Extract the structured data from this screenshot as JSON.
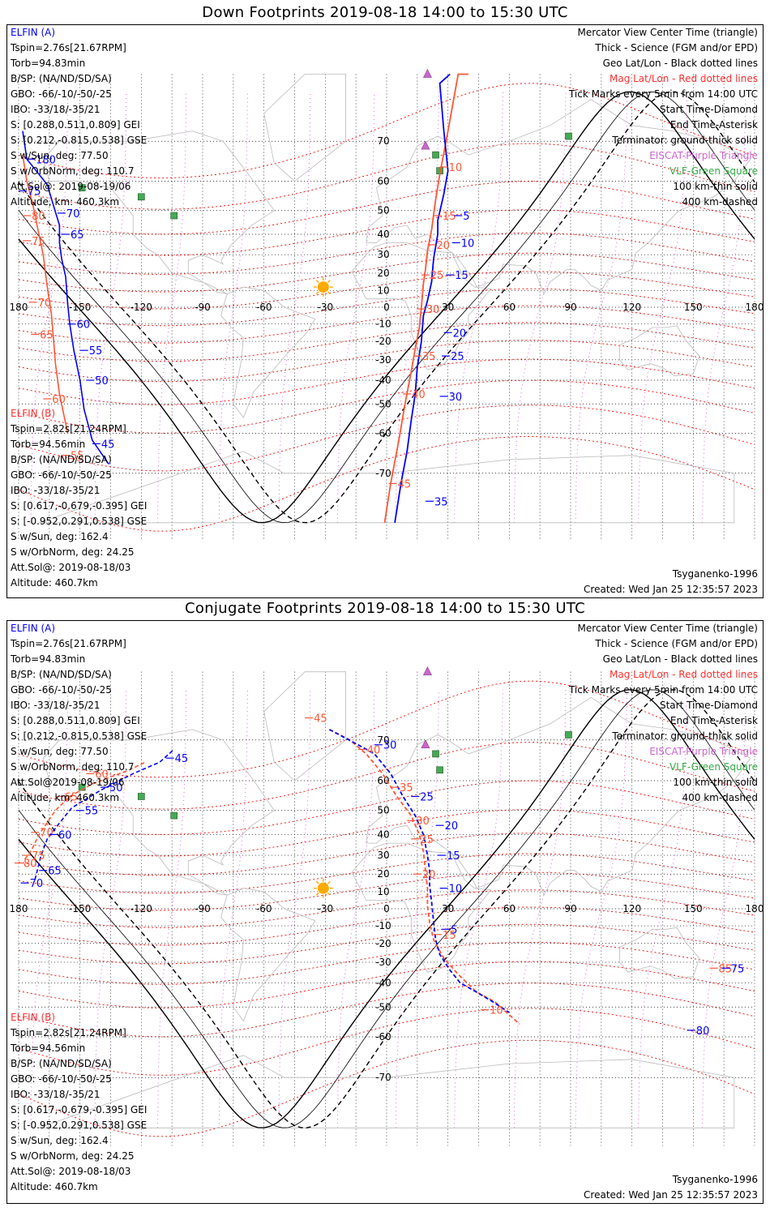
{
  "panels": [
    {
      "title": "Down Footprints 2019-08-18 14:00 to 15:30 UTC",
      "elfin_a": {
        "header": "ELFIN (A)",
        "lines": [
          "Tspin=2.76s[21.67RPM]",
          "Torb=94.83min",
          "B/SP: (NA/ND/SD/SA)",
          "GBO: -66/-10/-50/-25",
          "IBO: -33/18/-35/21",
          "S: [0.288,0.511,0.809] GEI",
          "S: [0.212,-0.815,0.538] GSE",
          "S w/Sun, deg: 77.50",
          "S w/OrbNorm, deg: 110.7",
          "Att.Sol@: 2019-08-19/06",
          "Altitude, km: 460.3km"
        ]
      },
      "elfin_b": {
        "header": "ELFIN (B)",
        "lines": [
          "Tspin=2.82s[21.24RPM]",
          "Torb=94.56min",
          "B/SP: (NA/ND/SD/SA)",
          "GBO: -66/-10/-50/-25",
          "IBO: -33/18/-35/21",
          "S: [0.617,-0.679,-0.395] GEI",
          "S: [-0.952,0.291,0.538] GSE",
          "S w/Sun, deg: 162.4",
          "S w/OrbNorm, deg: 24.25",
          "Att.Sol@: 2019-08-18/03",
          "Altitude: 460.7km"
        ]
      },
      "model": "Tsyganenko-1996",
      "created": "Created: Wed Jan 25 12:35:57 2023"
    },
    {
      "title": "Conjugate Footprints 2019-08-18 14:00 to 15:30 UTC",
      "elfin_a": {
        "header": "ELFIN (A)",
        "lines": [
          "Tspin=2.76s[21.67RPM]",
          "Torb=94.83min",
          "B/SP: (NA/ND/SD/SA)",
          "GBO: -66/-10/-50/-25",
          "IBO: -33/18/-35/21",
          "S: [0.288,0.511,0.809] GEI",
          "S: [0.212,-0.815,0.538] GSE",
          "S w/Sun, deg: 77.50",
          "S w/OrbNorm, deg: 110.7",
          "Att.Sol@2019-08-19/06",
          "Altitude, km: 460.3km"
        ]
      },
      "elfin_b": {
        "header": "ELFIN (B)",
        "lines": [
          "Tspin=2.82s[21.24RPM]",
          "Torb=94.56min",
          "B/SP: (NA/ND/SD/SA)",
          "GBO: -66/-10/-50/-25",
          "IBO: -33/18/-35/21",
          "S: [0.617,-0.679,-0.395] GEI",
          "S: [-0.952,0.291,0.538] GSE",
          "S w/Sun, deg: 162.4",
          "S w/OrbNorm, deg: 24.25",
          "Att.Sol@: 2019-08-18/03",
          "Altitude: 460.7km"
        ]
      },
      "model": "Tsyganenko-1996",
      "created": "Created: Wed Jan 25 12:35:57 2023"
    }
  ],
  "legend": [
    {
      "text": "Mercator View Center Time (triangle)",
      "color": "#000000"
    },
    {
      "text": "Thick - Science (FGM and/or EPD)",
      "color": "#000000"
    },
    {
      "text": "Geo Lat/Lon - Black dotted lines",
      "color": "#000000"
    },
    {
      "text": "Mag Lat/Lon - Red dotted lines",
      "color": "#ff3030"
    },
    {
      "text": "Tick Marks every 5min from 14:00 UTC",
      "color": "#000000"
    },
    {
      "text": "Start Time-Diamond",
      "color": "#000000"
    },
    {
      "text": "End Time-Asterisk",
      "color": "#000000"
    },
    {
      "text": "Terminator: ground-thick solid",
      "color": "#000000"
    },
    {
      "text": "EISCAT-Purple Triangle",
      "color": "#cc66cc"
    },
    {
      "text": "VLF-Green Square",
      "color": "#33aa44"
    },
    {
      "text": "100 km-thin solid",
      "color": "#000000"
    },
    {
      "text": "400 km-dashed",
      "color": "#000000"
    }
  ],
  "axes": {
    "lon_ticks": [
      "180",
      "-150",
      "-120",
      "-90",
      "-60",
      "-30",
      "0",
      "30",
      "60",
      "90",
      "120",
      "150",
      "180"
    ],
    "lat_ticks": [
      "70",
      "60",
      "50",
      "40",
      "30",
      "20",
      "10",
      "0",
      "-10",
      "-20",
      "-30",
      "-40",
      "-50",
      "-60",
      "-70"
    ]
  },
  "colors": {
    "elfin_a": "#0000ff",
    "elfin_b": "#ff5533",
    "mag_grid": "#ff0000",
    "geo_grid": "#000000",
    "mlon": "#dd55dd",
    "sun": "#ffaa00",
    "vlf": "#44aa55",
    "eiscat": "#cc66cc"
  },
  "markers": {
    "vlf": [
      [
        -149,
        58
      ],
      [
        -120,
        55
      ],
      [
        -104,
        48
      ],
      [
        24,
        67
      ],
      [
        26,
        63
      ],
      [
        89,
        71
      ]
    ],
    "eiscat": [
      [
        20,
        80
      ],
      [
        19,
        69
      ]
    ],
    "sun": [
      -31,
      12
    ]
  },
  "tracks": [
    {
      "a": [
        [
          -178,
          72
        ],
        [
          -176,
          66
        ],
        [
          -170,
          62
        ],
        [
          -166,
          59
        ],
        [
          -163,
          52
        ],
        [
          -160,
          44
        ],
        [
          -160,
          36
        ],
        [
          -159,
          28
        ],
        [
          -157,
          18
        ],
        [
          -156,
          2
        ],
        [
          -155,
          -10
        ],
        [
          -153,
          -25
        ],
        [
          -150,
          -40
        ],
        [
          -148,
          -52
        ],
        [
          -144,
          -62
        ],
        [
          -136,
          -68
        ]
      ],
      "a_labels": [
        [
          "180",
          -174,
          66
        ],
        [
          "75",
          -178,
          57
        ],
        [
          "70",
          -159,
          49
        ],
        [
          "65",
          -157,
          40
        ],
        [
          "60",
          -154,
          -10
        ],
        [
          "55",
          -148,
          -25
        ],
        [
          "50",
          -145,
          -40
        ],
        [
          "45",
          -142,
          -63
        ]
      ],
      "b": [
        [
          -178,
          67
        ],
        [
          -176,
          60
        ],
        [
          -173,
          52
        ],
        [
          -171,
          44
        ],
        [
          -168,
          30
        ],
        [
          -166,
          12
        ],
        [
          -164,
          -4
        ],
        [
          -163,
          -18
        ],
        [
          -162,
          -32
        ],
        [
          -160,
          -46
        ],
        [
          -156,
          -60
        ]
      ],
      "b_labels": [
        [
          "80",
          -176,
          48
        ],
        [
          "75",
          -176,
          37
        ],
        [
          "70",
          -173,
          3
        ],
        [
          "65",
          -172,
          -16
        ],
        [
          "60",
          -166,
          -48
        ],
        [
          "55",
          -157,
          -66
        ]
      ],
      "a2": [
        [
          31,
          89
        ],
        [
          26,
          79
        ],
        [
          28,
          72
        ],
        [
          30,
          63
        ],
        [
          28,
          56
        ],
        [
          25,
          46
        ],
        [
          25,
          40
        ],
        [
          23,
          28
        ],
        [
          22,
          15
        ],
        [
          20,
          4
        ],
        [
          18,
          -5
        ],
        [
          17,
          -20
        ],
        [
          15,
          -34
        ],
        [
          14,
          -46
        ],
        [
          12,
          -56
        ],
        [
          10,
          -65
        ],
        [
          7,
          -72
        ],
        [
          4,
          -78
        ]
      ],
      "a2_labels": [
        [
          "5",
          35,
          48
        ],
        [
          "10",
          34,
          36
        ],
        [
          "15",
          31,
          19
        ],
        [
          "20",
          30,
          -15
        ],
        [
          "25",
          29,
          -28
        ],
        [
          "30",
          28,
          -47
        ],
        [
          "35",
          21,
          -75
        ]
      ],
      "b2": [
        [
          40,
          90
        ],
        [
          35,
          82
        ],
        [
          30,
          72
        ],
        [
          26,
          62
        ],
        [
          24,
          54
        ],
        [
          22,
          42
        ],
        [
          20,
          32
        ],
        [
          19,
          22
        ],
        [
          18,
          14
        ],
        [
          17,
          0
        ],
        [
          16,
          -12
        ],
        [
          14,
          -24
        ],
        [
          12,
          -36
        ],
        [
          9,
          -50
        ],
        [
          6,
          -62
        ],
        [
          2,
          -72
        ],
        [
          -1,
          -78
        ]
      ],
      "b2_labels": [
        [
          "10",
          28,
          64
        ],
        [
          "15",
          25,
          48
        ],
        [
          "20",
          22,
          35
        ],
        [
          "25",
          19,
          19
        ],
        [
          "30",
          17,
          -1
        ],
        [
          "35",
          15,
          -28
        ],
        [
          "40",
          10,
          -46
        ],
        [
          "45",
          3,
          -72
        ]
      ]
    },
    {
      "a": [
        [
          -172,
          17
        ],
        [
          -169,
          30
        ],
        [
          -166,
          38
        ],
        [
          -160,
          45
        ],
        [
          -154,
          51
        ],
        [
          -140,
          57
        ],
        [
          -124,
          62
        ],
        [
          -111,
          65
        ],
        [
          -104,
          68
        ]
      ],
      "a_labels": [
        [
          "70",
          -177,
          15
        ],
        [
          "65",
          -168,
          22
        ],
        [
          "60",
          -163,
          40
        ],
        [
          "55",
          -150,
          50
        ],
        [
          "50",
          -138,
          58
        ],
        [
          "45",
          -106,
          66
        ]
      ],
      "b": [
        [
          -177,
          28
        ],
        [
          -174,
          32
        ],
        [
          -170,
          40
        ],
        [
          -162,
          50
        ],
        [
          -155,
          55
        ],
        [
          -144,
          59
        ],
        [
          -126,
          63
        ],
        [
          -118,
          65
        ]
      ],
      "b_labels": [
        [
          "80",
          -180,
          26
        ],
        [
          "75",
          -176,
          30
        ],
        [
          "70",
          -172,
          41
        ],
        [
          "65",
          -160,
          55
        ],
        [
          "60",
          -145,
          62
        ]
      ],
      "a2": [
        [
          -28,
          72
        ],
        [
          -14,
          69
        ],
        [
          -6,
          67
        ],
        [
          2,
          62
        ],
        [
          8,
          55
        ],
        [
          14,
          48
        ],
        [
          18,
          40
        ],
        [
          20,
          30
        ],
        [
          21,
          22
        ],
        [
          21,
          14
        ],
        [
          22,
          4
        ],
        [
          23,
          -8
        ],
        [
          24,
          -18
        ],
        [
          26,
          -26
        ],
        [
          31,
          -34
        ],
        [
          36,
          -40
        ],
        [
          44,
          -44
        ],
        [
          52,
          -48
        ],
        [
          60,
          -52
        ]
      ],
      "a2_labels": [
        [
          "30",
          -4,
          69
        ],
        [
          "25",
          14,
          55
        ],
        [
          "20",
          26,
          44
        ],
        [
          "15",
          27,
          30
        ],
        [
          "10",
          28,
          12
        ],
        [
          "5",
          29,
          -12
        ],
        [
          "80",
          149,
          -58
        ],
        [
          "75",
          166,
          -33
        ]
      ],
      "b2": [
        [
          -28,
          72
        ],
        [
          -18,
          70
        ],
        [
          -10,
          67
        ],
        [
          -2,
          62
        ],
        [
          5,
          55
        ],
        [
          12,
          48
        ],
        [
          16,
          40
        ],
        [
          18,
          32
        ],
        [
          19,
          22
        ],
        [
          20,
          12
        ],
        [
          20,
          2
        ],
        [
          21,
          -8
        ],
        [
          23,
          -18
        ],
        [
          28,
          -28
        ],
        [
          35,
          -36
        ],
        [
          44,
          -44
        ],
        [
          53,
          -48
        ],
        [
          65,
          -56
        ]
      ],
      "b2_labels": [
        [
          "45",
          -38,
          74
        ],
        [
          "40",
          -12,
          68
        ],
        [
          "35",
          4,
          58
        ],
        [
          "30",
          12,
          46
        ],
        [
          "25",
          14,
          38
        ],
        [
          "20",
          15,
          20
        ],
        [
          "15",
          25,
          -15
        ],
        [
          "10",
          48,
          -51
        ],
        [
          "85",
          160,
          -33
        ]
      ]
    }
  ]
}
